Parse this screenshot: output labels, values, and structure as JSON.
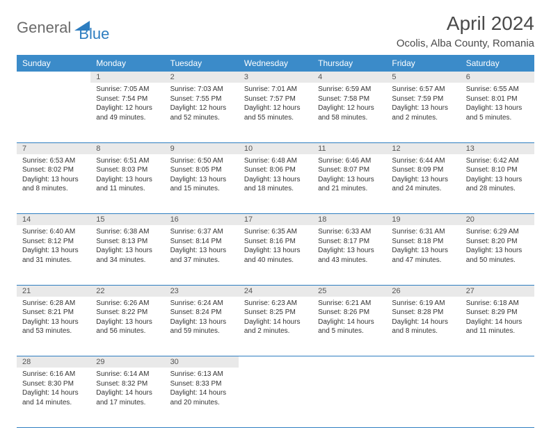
{
  "logo": {
    "part1": "General",
    "part2": "Blue"
  },
  "title": "April 2024",
  "location": "Ocolis, Alba County, Romania",
  "colors": {
    "header_bg": "#3b8bc9",
    "header_text": "#ffffff",
    "daynum_bg": "#e9e9e9",
    "border": "#2d7dc0",
    "logo_gray": "#6a6a6a",
    "logo_blue": "#2d7dc0"
  },
  "day_headers": [
    "Sunday",
    "Monday",
    "Tuesday",
    "Wednesday",
    "Thursday",
    "Friday",
    "Saturday"
  ],
  "weeks": [
    [
      null,
      {
        "n": "1",
        "sr": "Sunrise: 7:05 AM",
        "ss": "Sunset: 7:54 PM",
        "dl": "Daylight: 12 hours and 49 minutes."
      },
      {
        "n": "2",
        "sr": "Sunrise: 7:03 AM",
        "ss": "Sunset: 7:55 PM",
        "dl": "Daylight: 12 hours and 52 minutes."
      },
      {
        "n": "3",
        "sr": "Sunrise: 7:01 AM",
        "ss": "Sunset: 7:57 PM",
        "dl": "Daylight: 12 hours and 55 minutes."
      },
      {
        "n": "4",
        "sr": "Sunrise: 6:59 AM",
        "ss": "Sunset: 7:58 PM",
        "dl": "Daylight: 12 hours and 58 minutes."
      },
      {
        "n": "5",
        "sr": "Sunrise: 6:57 AM",
        "ss": "Sunset: 7:59 PM",
        "dl": "Daylight: 13 hours and 2 minutes."
      },
      {
        "n": "6",
        "sr": "Sunrise: 6:55 AM",
        "ss": "Sunset: 8:01 PM",
        "dl": "Daylight: 13 hours and 5 minutes."
      }
    ],
    [
      {
        "n": "7",
        "sr": "Sunrise: 6:53 AM",
        "ss": "Sunset: 8:02 PM",
        "dl": "Daylight: 13 hours and 8 minutes."
      },
      {
        "n": "8",
        "sr": "Sunrise: 6:51 AM",
        "ss": "Sunset: 8:03 PM",
        "dl": "Daylight: 13 hours and 11 minutes."
      },
      {
        "n": "9",
        "sr": "Sunrise: 6:50 AM",
        "ss": "Sunset: 8:05 PM",
        "dl": "Daylight: 13 hours and 15 minutes."
      },
      {
        "n": "10",
        "sr": "Sunrise: 6:48 AM",
        "ss": "Sunset: 8:06 PM",
        "dl": "Daylight: 13 hours and 18 minutes."
      },
      {
        "n": "11",
        "sr": "Sunrise: 6:46 AM",
        "ss": "Sunset: 8:07 PM",
        "dl": "Daylight: 13 hours and 21 minutes."
      },
      {
        "n": "12",
        "sr": "Sunrise: 6:44 AM",
        "ss": "Sunset: 8:09 PM",
        "dl": "Daylight: 13 hours and 24 minutes."
      },
      {
        "n": "13",
        "sr": "Sunrise: 6:42 AM",
        "ss": "Sunset: 8:10 PM",
        "dl": "Daylight: 13 hours and 28 minutes."
      }
    ],
    [
      {
        "n": "14",
        "sr": "Sunrise: 6:40 AM",
        "ss": "Sunset: 8:12 PM",
        "dl": "Daylight: 13 hours and 31 minutes."
      },
      {
        "n": "15",
        "sr": "Sunrise: 6:38 AM",
        "ss": "Sunset: 8:13 PM",
        "dl": "Daylight: 13 hours and 34 minutes."
      },
      {
        "n": "16",
        "sr": "Sunrise: 6:37 AM",
        "ss": "Sunset: 8:14 PM",
        "dl": "Daylight: 13 hours and 37 minutes."
      },
      {
        "n": "17",
        "sr": "Sunrise: 6:35 AM",
        "ss": "Sunset: 8:16 PM",
        "dl": "Daylight: 13 hours and 40 minutes."
      },
      {
        "n": "18",
        "sr": "Sunrise: 6:33 AM",
        "ss": "Sunset: 8:17 PM",
        "dl": "Daylight: 13 hours and 43 minutes."
      },
      {
        "n": "19",
        "sr": "Sunrise: 6:31 AM",
        "ss": "Sunset: 8:18 PM",
        "dl": "Daylight: 13 hours and 47 minutes."
      },
      {
        "n": "20",
        "sr": "Sunrise: 6:29 AM",
        "ss": "Sunset: 8:20 PM",
        "dl": "Daylight: 13 hours and 50 minutes."
      }
    ],
    [
      {
        "n": "21",
        "sr": "Sunrise: 6:28 AM",
        "ss": "Sunset: 8:21 PM",
        "dl": "Daylight: 13 hours and 53 minutes."
      },
      {
        "n": "22",
        "sr": "Sunrise: 6:26 AM",
        "ss": "Sunset: 8:22 PM",
        "dl": "Daylight: 13 hours and 56 minutes."
      },
      {
        "n": "23",
        "sr": "Sunrise: 6:24 AM",
        "ss": "Sunset: 8:24 PM",
        "dl": "Daylight: 13 hours and 59 minutes."
      },
      {
        "n": "24",
        "sr": "Sunrise: 6:23 AM",
        "ss": "Sunset: 8:25 PM",
        "dl": "Daylight: 14 hours and 2 minutes."
      },
      {
        "n": "25",
        "sr": "Sunrise: 6:21 AM",
        "ss": "Sunset: 8:26 PM",
        "dl": "Daylight: 14 hours and 5 minutes."
      },
      {
        "n": "26",
        "sr": "Sunrise: 6:19 AM",
        "ss": "Sunset: 8:28 PM",
        "dl": "Daylight: 14 hours and 8 minutes."
      },
      {
        "n": "27",
        "sr": "Sunrise: 6:18 AM",
        "ss": "Sunset: 8:29 PM",
        "dl": "Daylight: 14 hours and 11 minutes."
      }
    ],
    [
      {
        "n": "28",
        "sr": "Sunrise: 6:16 AM",
        "ss": "Sunset: 8:30 PM",
        "dl": "Daylight: 14 hours and 14 minutes."
      },
      {
        "n": "29",
        "sr": "Sunrise: 6:14 AM",
        "ss": "Sunset: 8:32 PM",
        "dl": "Daylight: 14 hours and 17 minutes."
      },
      {
        "n": "30",
        "sr": "Sunrise: 6:13 AM",
        "ss": "Sunset: 8:33 PM",
        "dl": "Daylight: 14 hours and 20 minutes."
      },
      null,
      null,
      null,
      null
    ]
  ]
}
